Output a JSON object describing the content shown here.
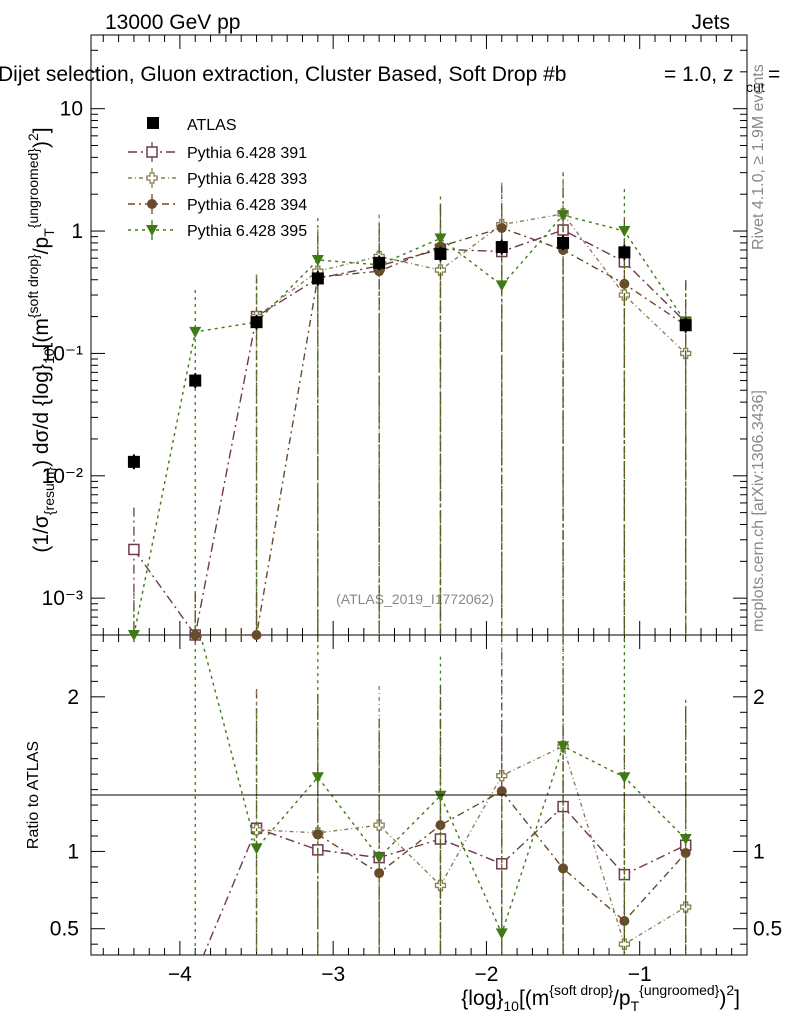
{
  "header": {
    "left": "13000 GeV pp",
    "right": "Jets",
    "title_main": "Dijet selection, Gluon extraction, Cluster Based, Soft Drop #b",
    "title_beta": "= 1.0, z",
    "title_cut": "cut",
    "title_end": " ="
  },
  "side": {
    "rivet": "Rivet 4.1.0, ≥ 1.9M events",
    "mcplots": "mcplots.cern.ch [arXiv:1306.3436]"
  },
  "watermark": "(ATLAS_2019_I1772062)",
  "axes": {
    "ylabel_main": "(1/σ_{resum}) dσ/d {log}_{10}[(m^{soft drop}/p_T^{ungroomed})^2]",
    "ylabel_ratio": "Ratio to ATLAS",
    "xlabel": "{log}_{10}[(m^{soft drop}/p_T^{ungroomed})^2]"
  },
  "colors": {
    "data": "#000000",
    "s391": "#6e3a4d",
    "s393": "#8b7d55",
    "s394": "#6b4a2b",
    "s395": "#3f7a14"
  },
  "chart_data": {
    "type": "scatter",
    "x": [
      -4.3,
      -3.9,
      -3.5,
      -3.1,
      -2.7,
      -2.3,
      -1.9,
      -1.5,
      -1.1,
      -0.7
    ],
    "xlim": [
      -4.58,
      -0.3
    ],
    "ylim_main_log": [
      0.0005,
      40
    ],
    "ylim_ratio": [
      0.33,
      2.4
    ],
    "xticks": [
      "−4",
      "−3",
      "−2",
      "−1"
    ],
    "xtick_values": [
      -4,
      -3,
      -2,
      -1
    ],
    "yticks_main": [
      "10⁻³",
      "10⁻²",
      "10⁻¹",
      "1",
      "10"
    ],
    "ytick_main_values": [
      0.001,
      0.01,
      0.1,
      1,
      10
    ],
    "yticks_ratio": [
      "0.5",
      "1",
      "2"
    ],
    "ytick_ratio_values": [
      0.5,
      1,
      2
    ],
    "legend": [
      "ATLAS",
      "Pythia 6.428 391",
      "Pythia 6.428 393",
      "Pythia 6.428 394",
      "Pythia 6.428 395"
    ],
    "data": {
      "name": "ATLAS",
      "values": [
        0.013,
        0.06,
        0.18,
        0.41,
        0.55,
        0.65,
        0.74,
        0.8,
        0.67,
        0.17
      ]
    },
    "series": [
      {
        "name": "Pythia 6.428 391",
        "marker": "open-square",
        "values": [
          0.0025,
          0.0005,
          0.2,
          0.41,
          0.52,
          0.71,
          0.68,
          1.02,
          0.56,
          0.18
        ],
        "ratio": [
          null,
          0.0,
          1.15,
          1.01,
          0.96,
          1.08,
          0.92,
          1.29,
          0.85,
          1.04
        ]
      },
      {
        "name": "Pythia 6.428 393",
        "marker": "open-cross",
        "values": [
          null,
          null,
          0.2,
          0.47,
          0.62,
          0.48,
          1.13,
          1.38,
          0.3,
          0.1
        ],
        "ratio": [
          null,
          null,
          1.14,
          1.12,
          1.17,
          0.78,
          1.49,
          1.68,
          0.4,
          0.64
        ]
      },
      {
        "name": "Pythia 6.428 394",
        "marker": "filled-circle",
        "values": [
          null,
          0.0005,
          0.0005,
          0.42,
          0.47,
          0.75,
          1.06,
          0.7,
          0.37,
          0.17
        ],
        "ratio": [
          null,
          null,
          null,
          1.11,
          0.86,
          1.17,
          1.39,
          0.89,
          0.55,
          0.99
        ]
      },
      {
        "name": "Pythia 6.428 395",
        "marker": "filled-triangle-down",
        "values": [
          0.0005,
          0.15,
          0.18,
          0.58,
          0.53,
          0.87,
          0.36,
          1.35,
          1.0,
          0.18
        ],
        "ratio": [
          null,
          2.5,
          1.02,
          1.48,
          0.96,
          1.36,
          0.47,
          1.68,
          1.48,
          1.08
        ]
      }
    ]
  }
}
